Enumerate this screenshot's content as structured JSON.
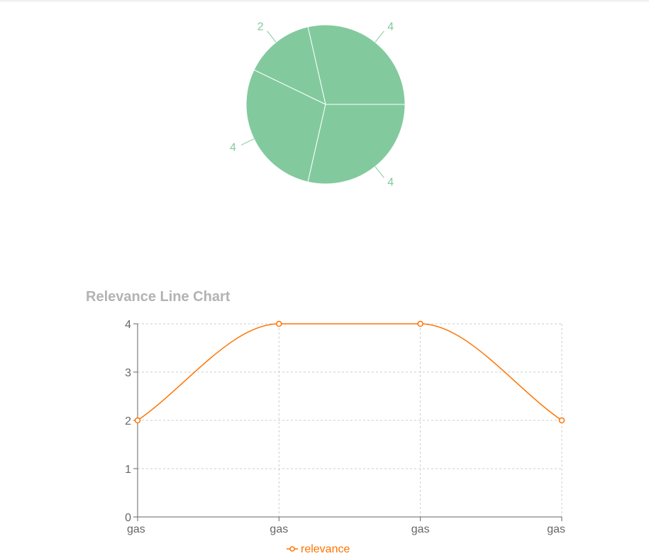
{
  "colors": {
    "pie_fill": "#82ca9d",
    "pie_stroke": "#ffffff",
    "pie_label": "#82ca9d",
    "line": "#ff7300",
    "grid": "#cccccc",
    "axis": "#666666",
    "title": "#b3b3b3"
  },
  "chart_data": [
    {
      "type": "pie",
      "values": [
        4,
        2,
        4,
        4
      ],
      "labels": [
        "4",
        "2",
        "4",
        "4"
      ],
      "start_angle_deg": 0,
      "direction": "clockwise_screen_from_3oclock_reversed"
    },
    {
      "type": "line",
      "title": "Relevance Line Chart",
      "categories": [
        "gas",
        "gas",
        "gas",
        "gas"
      ],
      "series": [
        {
          "name": "relevance",
          "values": [
            2,
            4,
            4,
            2
          ]
        }
      ],
      "ylim": [
        0,
        4
      ],
      "yticks": [
        0,
        1,
        2,
        3,
        4
      ],
      "grid": true,
      "legend": "bottom-center",
      "curve": "monotone"
    }
  ]
}
